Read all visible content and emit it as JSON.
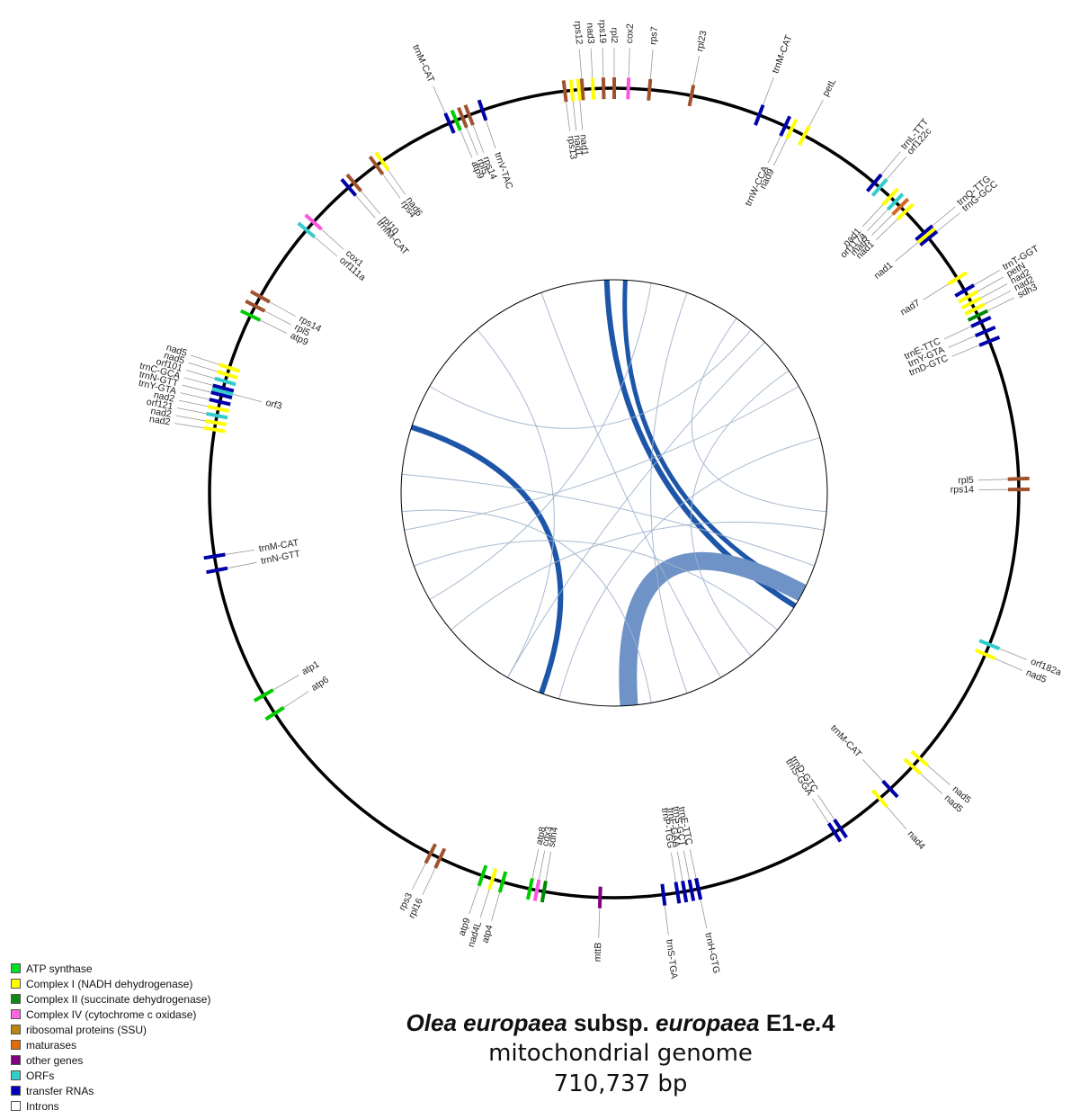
{
  "genes": [
    {
      "angle": 2,
      "label": "cox2",
      "color": "#ff55dd",
      "side": "out"
    },
    {
      "angle": 0,
      "label": "rpl2",
      "color": "#a0522d",
      "side": "out"
    },
    {
      "angle": -1.5,
      "label": "rps19",
      "color": "#a0522d",
      "side": "out"
    },
    {
      "angle": -3,
      "label": "nad3",
      "color": "#ffff00",
      "side": "out"
    },
    {
      "angle": -4.5,
      "label": "rps12",
      "color": "#a0522d",
      "side": "out"
    },
    {
      "angle": 5,
      "label": "rps7",
      "color": "#a0522d",
      "side": "out"
    },
    {
      "angle": 11,
      "label": "rpl23",
      "color": "#a0522d",
      "side": "out"
    },
    {
      "angle": 21,
      "label": "trnM-CAT",
      "color": "#0000aa",
      "side": "out"
    },
    {
      "angle": 28,
      "label": "petL",
      "color": "#ffff00",
      "side": "out"
    },
    {
      "angle": 26,
      "label": "nad9",
      "color": "#ffff00",
      "side": "in"
    },
    {
      "angle": 25,
      "label": "trnW-CCA",
      "color": "#0000aa",
      "side": "in"
    },
    {
      "angle": -5,
      "label": "nad1",
      "color": "#ffff00",
      "side": "in"
    },
    {
      "angle": -6,
      "label": "nad1",
      "color": "#ffff00",
      "side": "in"
    },
    {
      "angle": -7,
      "label": "rps13",
      "color": "#a0522d",
      "side": "in"
    },
    {
      "angle": -24,
      "label": "trnM-CAT",
      "color": "#0000aa",
      "side": "out"
    },
    {
      "angle": -19,
      "label": "trnV-TAC",
      "color": "#0000aa",
      "side": "in"
    },
    {
      "angle": -21,
      "label": "rps14",
      "color": "#a0522d",
      "side": "in"
    },
    {
      "angle": -22,
      "label": "rpl5",
      "color": "#a0522d",
      "side": "in"
    },
    {
      "angle": -23,
      "label": "atp9",
      "color": "#00cc00",
      "side": "in"
    },
    {
      "angle": -35,
      "label": "nad6",
      "color": "#ffff00",
      "side": "in"
    },
    {
      "angle": -36,
      "label": "rps4",
      "color": "#a0522d",
      "side": "in"
    },
    {
      "angle": -40,
      "label": "rpl10",
      "color": "#a0522d",
      "side": "in"
    },
    {
      "angle": -41,
      "label": "trnfM-CAT",
      "color": "#0000aa",
      "side": "in"
    },
    {
      "angle": -48,
      "label": "cox1",
      "color": "#ff55dd",
      "side": "in"
    },
    {
      "angle": -49.5,
      "label": "orf111a",
      "color": "#33cccc",
      "side": "in"
    },
    {
      "angle": -61,
      "label": "rps14",
      "color": "#a0522d",
      "side": "in"
    },
    {
      "angle": -62.5,
      "label": "rpl5",
      "color": "#a0522d",
      "side": "in"
    },
    {
      "angle": -64,
      "label": "atp9",
      "color": "#00cc00",
      "side": "in"
    },
    {
      "angle": -72,
      "label": "nad5",
      "color": "#ffff00",
      "side": "out"
    },
    {
      "angle": -73,
      "label": "nad5",
      "color": "#ffff00",
      "side": "out"
    },
    {
      "angle": -74,
      "label": "orf101",
      "color": "#33cccc",
      "side": "out"
    },
    {
      "angle": -75,
      "label": "trnC-GCA",
      "color": "#0000aa",
      "side": "out"
    },
    {
      "angle": -76,
      "label": "trnN-GTT",
      "color": "#0000aa",
      "side": "out"
    },
    {
      "angle": -77,
      "label": "trnY-GTA",
      "color": "#0000aa",
      "side": "out"
    },
    {
      "angle": -78,
      "label": "nad2",
      "color": "#ffff00",
      "side": "out"
    },
    {
      "angle": -79,
      "label": "orf121",
      "color": "#33cccc",
      "side": "out"
    },
    {
      "angle": -80,
      "label": "nad2",
      "color": "#ffff00",
      "side": "out"
    },
    {
      "angle": -81,
      "label": "nad2",
      "color": "#ffff00",
      "side": "out"
    },
    {
      "angle": -75.5,
      "label": "orf3",
      "color": "#33cccc",
      "side": "in"
    },
    {
      "angle": -99,
      "label": "trnM-CAT",
      "color": "#0000aa",
      "side": "in"
    },
    {
      "angle": -101,
      "label": "trnN-GTT",
      "color": "#0000aa",
      "side": "in"
    },
    {
      "angle": -120,
      "label": "atp1",
      "color": "#00cc00",
      "side": "in"
    },
    {
      "angle": -123,
      "label": "atp6",
      "color": "#00cc00",
      "side": "in"
    },
    {
      "angle": -153,
      "label": "rps3",
      "color": "#a0522d",
      "side": "out"
    },
    {
      "angle": -154.5,
      "label": "rpl16",
      "color": "#a0522d",
      "side": "out"
    },
    {
      "angle": -161,
      "label": "atp9",
      "color": "#00cc00",
      "side": "out"
    },
    {
      "angle": -162.5,
      "label": "nad4L",
      "color": "#ffff00",
      "side": "out"
    },
    {
      "angle": -164,
      "label": "atp4",
      "color": "#00cc00",
      "side": "out"
    },
    {
      "angle": -170,
      "label": "sdh4",
      "color": "#008800",
      "side": "in"
    },
    {
      "angle": -169,
      "label": "cox3",
      "color": "#ff55dd",
      "side": "in"
    },
    {
      "angle": -168,
      "label": "atp8",
      "color": "#00cc00",
      "side": "in"
    },
    {
      "angle": -178,
      "label": "mttB",
      "color": "#800080",
      "side": "out"
    },
    {
      "angle": 173,
      "label": "trnS-TGA",
      "color": "#0000aa",
      "side": "out"
    },
    {
      "angle": 168,
      "label": "trnH-GTG",
      "color": "#0000aa",
      "side": "out"
    },
    {
      "angle": 171,
      "label": "trnP-TGG",
      "color": "#0000aa",
      "side": "in"
    },
    {
      "angle": 170,
      "label": "trnF-GAA",
      "color": "#0000aa",
      "side": "in"
    },
    {
      "angle": 169,
      "label": "trnS-GCT",
      "color": "#0000aa",
      "side": "in"
    },
    {
      "angle": 168,
      "label": "trnE-TTC",
      "color": "#0000aa",
      "side": "in"
    },
    {
      "angle": 146,
      "label": "trnD-GTC",
      "color": "#0000aa",
      "side": "in"
    },
    {
      "angle": 147,
      "label": "trnS-GGA",
      "color": "#0000aa",
      "side": "in"
    },
    {
      "angle": 139,
      "label": "nad4",
      "color": "#ffff00",
      "side": "out"
    },
    {
      "angle": 137,
      "label": "trnM-CAT",
      "color": "#0000aa",
      "side": "in"
    },
    {
      "angle": 131,
      "label": "nad5",
      "color": "#ffff00",
      "side": "out"
    },
    {
      "angle": 132.5,
      "label": "nad5",
      "color": "#ffff00",
      "side": "out"
    },
    {
      "angle": 112,
      "label": "orf182a",
      "color": "#33cccc",
      "side": "out"
    },
    {
      "angle": 113.5,
      "label": "nad5",
      "color": "#ffff00",
      "side": "out"
    },
    {
      "angle": 88,
      "label": "rpl5",
      "color": "#a0522d",
      "side": "in"
    },
    {
      "angle": 89.5,
      "label": "rps14",
      "color": "#a0522d",
      "side": "in"
    },
    {
      "angle": 60,
      "label": "trnT-GGT",
      "color": "#0000aa",
      "side": "out"
    },
    {
      "angle": 61,
      "label": "petN",
      "color": "#ffff00",
      "side": "out"
    },
    {
      "angle": 62,
      "label": "nad2",
      "color": "#ffff00",
      "side": "out"
    },
    {
      "angle": 63,
      "label": "nad2",
      "color": "#ffff00",
      "side": "out"
    },
    {
      "angle": 64,
      "label": "sdh3",
      "color": "#008800",
      "side": "out"
    },
    {
      "angle": 58,
      "label": "nad7",
      "color": "#ffff00",
      "side": "in"
    },
    {
      "angle": 65,
      "label": "trnE-TTC",
      "color": "#0000aa",
      "side": "in"
    },
    {
      "angle": 66.5,
      "label": "trnY-GTA",
      "color": "#0000aa",
      "side": "in"
    },
    {
      "angle": 68,
      "label": "trnD-GTC",
      "color": "#0000aa",
      "side": "in"
    },
    {
      "angle": 50,
      "label": "trnQ-TTG",
      "color": "#0000aa",
      "side": "out"
    },
    {
      "angle": 51,
      "label": "trnG-GCC",
      "color": "#0000aa",
      "side": "out"
    },
    {
      "angle": 50.5,
      "label": "nad1",
      "color": "#ffff00",
      "side": "in"
    },
    {
      "angle": 40,
      "label": "trnL-TTT",
      "color": "#0000aa",
      "side": "out"
    },
    {
      "angle": 41,
      "label": "orf122c",
      "color": "#33cccc",
      "side": "out"
    },
    {
      "angle": 43,
      "label": "nad1",
      "color": "#ffff00",
      "side": "in"
    },
    {
      "angle": 44,
      "label": "orf117a",
      "color": "#33cccc",
      "side": "in"
    },
    {
      "angle": 45,
      "label": "matR",
      "color": "#d2691e",
      "side": "in"
    },
    {
      "angle": 46,
      "label": "nad1",
      "color": "#ffff00",
      "side": "in"
    }
  ],
  "legend": [
    {
      "label": "ATP synthase",
      "color": "#00dd22"
    },
    {
      "label": "Complex I (NADH dehydrogenase)",
      "color": "#ffff00"
    },
    {
      "label": "Complex II (succinate dehydrogenase)",
      "color": "#118811"
    },
    {
      "label": "Complex IV (cytochrome c oxidase)",
      "color": "#ff66dd"
    },
    {
      "label": "ribosomal proteins (SSU)",
      "color": "#b8860b"
    },
    {
      "label": "maturases",
      "color": "#e36c0a"
    },
    {
      "label": "other genes",
      "color": "#800080"
    },
    {
      "label": "ORFs",
      "color": "#33cccc"
    },
    {
      "label": "transfer RNAs",
      "color": "#0000bb"
    },
    {
      "label": "Introns",
      "color": "#ffffff"
    }
  ],
  "title": {
    "species_bold_italic_1": "Olea europaea",
    "subsp": " subsp. ",
    "species_bold_italic_2": "europaea",
    "cultivar_a": " E1-",
    "cultivar_italic": "e.",
    "cultivar_b": "4",
    "line2": "mitochondrial genome",
    "line3": "710,737 bp"
  },
  "links": [
    {
      "from": -2,
      "to": 122,
      "weight": 6
    },
    {
      "from": 3,
      "to": 118,
      "weight": 5
    },
    {
      "from": -72,
      "to": 200,
      "weight": 6
    },
    {
      "from": 118,
      "to": 176,
      "weight": 20
    },
    {
      "from": -60,
      "to": 40,
      "weight": 1
    },
    {
      "from": -100,
      "to": 60,
      "weight": 1
    },
    {
      "from": -110,
      "to": 130,
      "weight": 1
    },
    {
      "from": 20,
      "to": 160,
      "weight": 1
    },
    {
      "from": -20,
      "to": 150,
      "weight": 1
    },
    {
      "from": -130,
      "to": 100,
      "weight": 1
    },
    {
      "from": -150,
      "to": 45,
      "weight": 1
    },
    {
      "from": 35,
      "to": 95,
      "weight": 1
    },
    {
      "from": -40,
      "to": -150,
      "weight": 1
    },
    {
      "from": -95,
      "to": 170,
      "weight": 1
    },
    {
      "from": 55,
      "to": 140,
      "weight": 1
    },
    {
      "from": -165,
      "to": 75,
      "weight": 1
    },
    {
      "from": -85,
      "to": 110,
      "weight": 1
    },
    {
      "from": 10,
      "to": -120,
      "weight": 1
    }
  ]
}
